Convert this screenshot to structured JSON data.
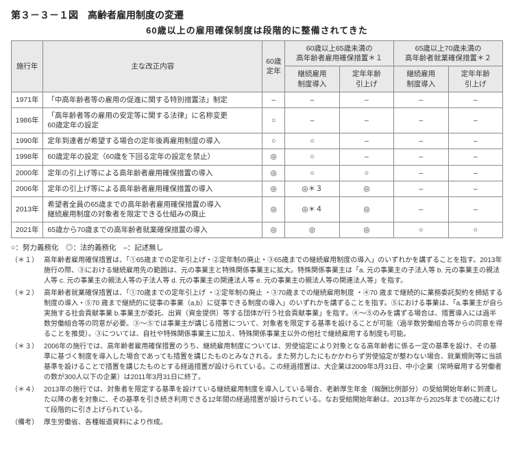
{
  "figTitle": "第３－３－１図　高齢者雇用制度の変遷",
  "subTitle": "60歳以上の雇用確保制度は段階的に整備されてきた",
  "headers": {
    "col_year": "施行年",
    "col_desc": "主な改正内容",
    "col_60": "60歳\n定年",
    "group1": "60歳以上65歳未満の\n高年齢者雇用確保措置＊１",
    "group2": "65歳以上70歳未満の\n高年齢者就業確保措置＊２",
    "sub_a": "継続雇用\n制度導入",
    "sub_b": "定年年齢\n引上げ",
    "sub_c": "継続雇用\n制度導入",
    "sub_d": "定年年齢\n引上げ"
  },
  "rows": [
    {
      "year": "1971年",
      "desc": "「中高年齢者等の雇用の促進に関する特別措置法」制定",
      "c60": "–",
      "a": "–",
      "b": "–",
      "c": "–",
      "d": "–"
    },
    {
      "year": "1986年",
      "desc": "「高年齢者等の雇用の安定等に関する法律」に名称変更\n60歳定年の設定",
      "c60": "○",
      "a": "–",
      "b": "–",
      "c": "–",
      "d": "–"
    },
    {
      "year": "1990年",
      "desc": "定年到達者が希望する場合の定年後再雇用制度の導入",
      "c60": "○",
      "a": "○",
      "b": "–",
      "c": "–",
      "d": "–"
    },
    {
      "year": "1998年",
      "desc": "60歳定年の設定（60歳を下回る定年の設定を禁止）",
      "c60": "◎",
      "a": "○",
      "b": "–",
      "c": "–",
      "d": "–"
    },
    {
      "year": "2000年",
      "desc": "定年の引上げ等による高年齢者雇用確保措置の導入",
      "c60": "◎",
      "a": "○",
      "b": "○",
      "c": "–",
      "d": "–"
    },
    {
      "year": "2006年",
      "desc": "定年の引上げ等による高年齢者雇用確保措置の導入",
      "c60": "◎",
      "a": "◎＊３",
      "b": "◎",
      "c": "–",
      "d": "–"
    },
    {
      "year": "2013年",
      "desc": "希望者全員の65歳までの高年齢者雇用確保措置の導入\n継続雇用制度の対象者を限定できる仕組みの廃止",
      "c60": "◎",
      "a": "◎＊４",
      "b": "◎",
      "c": "–",
      "d": "–"
    },
    {
      "year": "2021年",
      "desc": "65歳から70歳までの高年齢者就業確保措置の導入",
      "c60": "◎",
      "a": "◎",
      "b": "◎",
      "c": "○",
      "d": "○"
    }
  ],
  "legend": "○：努力義務化　◎：法的義務化　–：記述無し",
  "notes": [
    {
      "tag": "（＊１）",
      "body": "高年齢者雇用確保措置は、「①65歳までの定年引上げ・②定年制の廃止・③65歳までの継続雇用制度の導入」のいずれかを講ずることを指す。2013年施行の際、③における継続雇用先の範囲は、元の事業主と特殊関係事業主に拡大。特殊関係事業主は「a. 元の事業主の子法人等 b. 元の事業主の親法人等 c. 元の事業主の親法人等の子法人等 d. 元の事業主の関連法人等 e. 元の事業主の親法人等の関連法人等」を指す。"
    },
    {
      "tag": "（＊２）",
      "body": "高年齢者就業確保措置は、「①70歳までの定年引上げ ・②定年制の廃止 ・③70歳までの継続雇用制度 ・④70 歳まで継続的に業務委託契約を締結する制度の導入・⑤70 歳まで継続的に従事の事業（a,b）に従事できる制度の導入」のいずれかを講ずることを指す。⑤における事業は、「a.事業主が自ら実施する社会貢献事業 b.事業主が委託、出資（資金提供）等する団体が行う社会貢献事業」を指す。④～⑤のみを講ずる場合は、措置導入には過半数労働組合等の同意が必要。③～⑤では事業主が講じる措置について、対象者を限定する基準を設けることが可能（過半数労働組合等からの同意を得ることを推奨）。③については、自社や特殊関係事業主に加え、特殊関係事業主以外の他社で継続雇用する制度も可能。"
    },
    {
      "tag": "（＊３）",
      "body": "2006年の施行では、高年齢者雇用確保措置のうち、継続雇用制度については、労使協定により対象となる高年齢者に係る一定の基準を設け、その基準に基づく制度を導入した場合であっても措置を講じたものとみなされる。また努力したにもかかわらず労使協定が整わない場合、就業規則等に当該基準を設けることで措置を講じたものとする経過措置が設けられている。この経過措置は、大企業は2009年3月31日、中小企業（常時雇用する労働者の数が300人以下の企業）は2011年3月31日に終了。"
    },
    {
      "tag": "（＊４）",
      "body": "2013年の施行では、対象者を限定する基準を設けている継続雇用制度を導入している場合、老齢厚生年金（報酬比例部分）の受給開始年齢に到達した以降の者を対象に、その基準を引き続き利用できる12年間の経過措置が設けられている。なお受給開始年齢は、2013年から2025年まで65歳にむけて段階的に引き上げられている。"
    },
    {
      "tag": "（備考）",
      "body": "厚生労働省、各種報道資料により作成。"
    }
  ]
}
